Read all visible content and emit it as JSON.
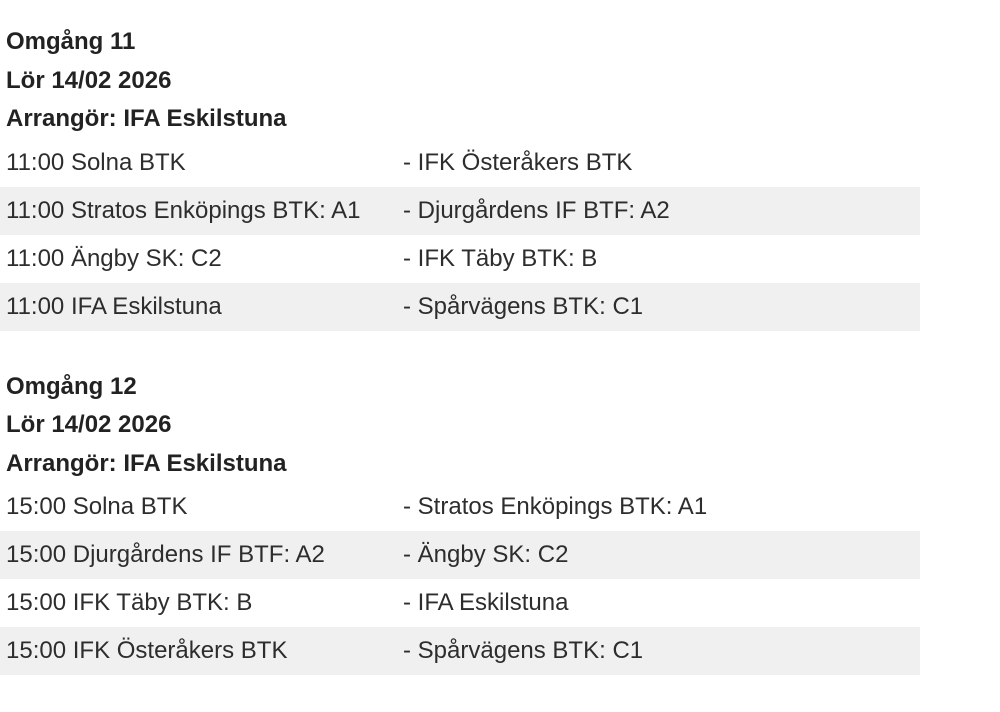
{
  "rounds": [
    {
      "title": "Omgång 11",
      "date": "Lör 14/02 2026",
      "organizer": "Arrangör: IFA Eskilstuna",
      "matches": [
        {
          "time": "11:00",
          "home": "Solna BTK",
          "away": "IFK Österåkers BTK"
        },
        {
          "time": "11:00",
          "home": "Stratos Enköpings BTK: A1",
          "away": "Djurgårdens IF BTF: A2"
        },
        {
          "time": "11:00",
          "home": "Ängby SK: C2",
          "away": "IFK Täby BTK: B"
        },
        {
          "time": "11:00",
          "home": "IFA Eskilstuna",
          "away": "Spårvägens BTK: C1"
        }
      ]
    },
    {
      "title": "Omgång 12",
      "date": "Lör 14/02 2026",
      "organizer": "Arrangör: IFA Eskilstuna",
      "matches": [
        {
          "time": "15:00",
          "home": "Solna BTK",
          "away": "Stratos Enköpings BTK: A1"
        },
        {
          "time": "15:00",
          "home": "Djurgårdens IF BTF: A2",
          "away": "Ängby SK: C2"
        },
        {
          "time": "15:00",
          "home": "IFK Täby BTK: B",
          "away": "IFA Eskilstuna"
        },
        {
          "time": "15:00",
          "home": "IFK Österåkers BTK",
          "away": "Spårvägens BTK: C1"
        }
      ]
    }
  ],
  "colors": {
    "row_alt": "#f0f0f0",
    "text": "#2d2d2d",
    "heading": "#222222"
  }
}
